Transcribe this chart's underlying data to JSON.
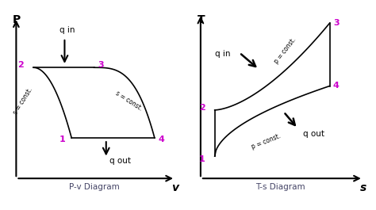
{
  "background_color": "#ffffff",
  "magenta": "#cc00cc",
  "black": "#000000",
  "pv": {
    "title": "P-v Diagram",
    "xlabel": "v",
    "ylabel": "P",
    "p1": [
      0.37,
      0.3
    ],
    "p2": [
      0.15,
      0.68
    ],
    "p3": [
      0.5,
      0.68
    ],
    "p4": [
      0.85,
      0.3
    ]
  },
  "ts": {
    "title": "T-s Diagram",
    "xlabel": "s",
    "ylabel": "T",
    "t1": [
      0.13,
      0.2
    ],
    "t2": [
      0.13,
      0.45
    ],
    "t3": [
      0.78,
      0.92
    ],
    "t4": [
      0.78,
      0.58
    ]
  }
}
